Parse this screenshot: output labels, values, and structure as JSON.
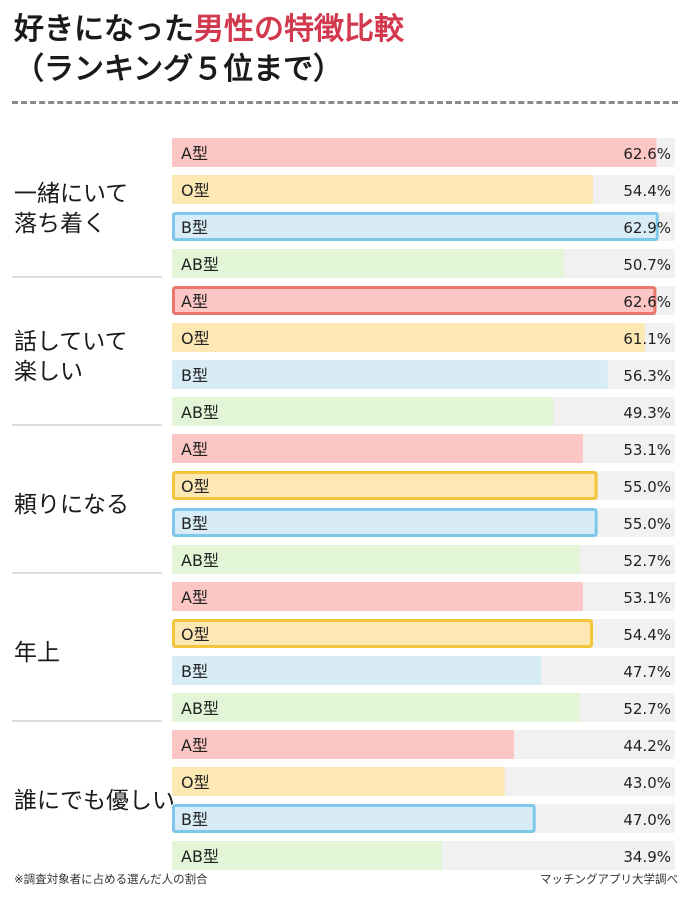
{
  "title": {
    "prefix": "好きになった",
    "highlight": "男性の特徴比較",
    "line2": "（ランキング５位まで）"
  },
  "footer": {
    "note": "※調査対象者に占める選んだ人の割合",
    "credit": "マッチングアプリ大学調べ"
  },
  "chart_data": {
    "type": "bar",
    "orientation": "horizontal",
    "title": "好きになった男性の特徴比較（ランキング５位まで）",
    "unit": "%",
    "xlim": [
      0,
      65
    ],
    "series_names": [
      "A型",
      "O型",
      "B型",
      "AB型"
    ],
    "colors": {
      "A型": {
        "fill": "#fbc6c3",
        "border": "#e9776e"
      },
      "O型": {
        "fill": "#fde8b3",
        "border": "#f2c53a"
      },
      "B型": {
        "fill": "#d7ecf7",
        "border": "#7cc7ea"
      },
      "AB型": {
        "fill": "#e2f5d6",
        "border": "#9fd28a"
      },
      "track": "#f1f1f1"
    },
    "groups": [
      {
        "label": [
          "一緒にいて",
          "落ち着く"
        ],
        "values": [
          62.6,
          54.4,
          62.9,
          50.7
        ],
        "value_labels": [
          "62.6%",
          "54.4%",
          "62.9%",
          "50.7%"
        ],
        "highlight": [
          false,
          false,
          true,
          false
        ]
      },
      {
        "label": [
          "話していて",
          "楽しい"
        ],
        "values": [
          62.6,
          61.1,
          56.3,
          49.3
        ],
        "value_labels": [
          "62.6%",
          "61.1%",
          "56.3%",
          "49.3%"
        ],
        "highlight": [
          true,
          false,
          false,
          false
        ]
      },
      {
        "label": [
          "頼りになる"
        ],
        "values": [
          53.1,
          55.0,
          55.0,
          52.7
        ],
        "value_labels": [
          "53.1%",
          "55.0%",
          "55.0%",
          "52.7%"
        ],
        "highlight": [
          false,
          true,
          true,
          false
        ]
      },
      {
        "label": [
          "年上"
        ],
        "values": [
          53.1,
          54.4,
          47.7,
          52.7
        ],
        "value_labels": [
          "53.1%",
          "54.4%",
          "47.7%",
          "52.7%"
        ],
        "highlight": [
          false,
          true,
          false,
          false
        ]
      },
      {
        "label": [
          "誰にでも優しい"
        ],
        "values": [
          44.2,
          43.0,
          47.0,
          34.9
        ],
        "value_labels": [
          "44.2%",
          "43.0%",
          "47.0%",
          "34.9%"
        ],
        "highlight": [
          false,
          false,
          true,
          false
        ]
      }
    ]
  }
}
